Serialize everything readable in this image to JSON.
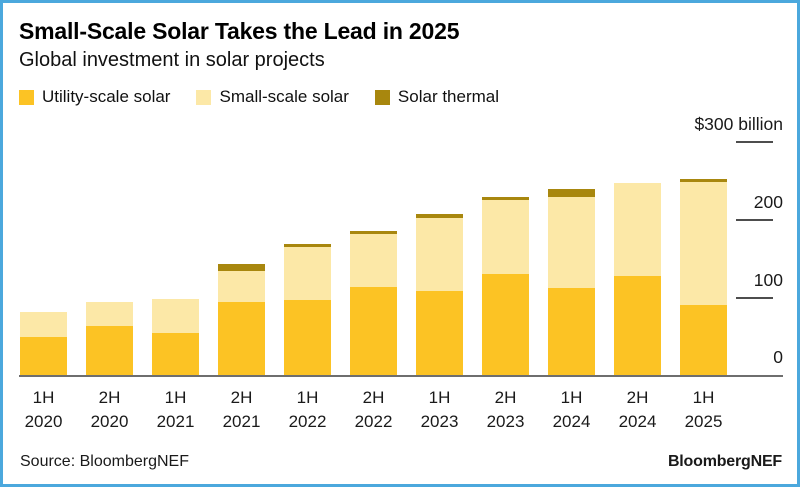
{
  "frame": {
    "border_color": "#4BA8DD",
    "background_color": "#FFFFFF"
  },
  "header": {
    "title": "Small-Scale Solar Takes the Lead in 2025",
    "subtitle": "Global investment in solar projects"
  },
  "legend": [
    {
      "label": "Utility-scale solar",
      "color": "#FCC324"
    },
    {
      "label": "Small-scale solar",
      "color": "#FCE8A7"
    },
    {
      "label": "Solar thermal",
      "color": "#A8870E"
    }
  ],
  "chart_data": {
    "type": "bar",
    "stacked": true,
    "title": "Small-Scale Solar Takes the Lead in 2025",
    "subtitle": "Global investment in solar projects",
    "categories": [
      {
        "half": "1H",
        "year": "2020"
      },
      {
        "half": "2H",
        "year": "2020"
      },
      {
        "half": "1H",
        "year": "2021"
      },
      {
        "half": "2H",
        "year": "2021"
      },
      {
        "half": "1H",
        "year": "2022"
      },
      {
        "half": "2H",
        "year": "2022"
      },
      {
        "half": "1H",
        "year": "2023"
      },
      {
        "half": "2H",
        "year": "2023"
      },
      {
        "half": "1H",
        "year": "2024"
      },
      {
        "half": "2H",
        "year": "2024"
      },
      {
        "half": "1H",
        "year": "2025"
      }
    ],
    "series": [
      {
        "name": "Utility-scale solar",
        "color": "#FCC324",
        "values": [
          50,
          63,
          55,
          94,
          97,
          114,
          108,
          131,
          113,
          128,
          91
        ]
      },
      {
        "name": "Small-scale solar",
        "color": "#FCE8A7",
        "values": [
          31,
          32,
          43,
          41,
          68,
          68,
          95,
          95,
          116,
          120,
          158
        ]
      },
      {
        "name": "Solar thermal",
        "color": "#A8870E",
        "values": [
          0,
          0,
          0,
          9,
          4,
          4,
          5,
          4,
          11,
          0,
          4
        ]
      }
    ],
    "ylim": [
      0,
      300
    ],
    "y_ticks": [
      {
        "value": 300,
        "label": "$300 billion"
      },
      {
        "value": 200,
        "label": "200"
      },
      {
        "value": 100,
        "label": "100"
      },
      {
        "value": 0,
        "label": "0"
      }
    ],
    "grid": false,
    "legend_position": "top"
  },
  "footer": {
    "source": "Source: BloombergNEF",
    "brand": "BloombergNEF"
  }
}
